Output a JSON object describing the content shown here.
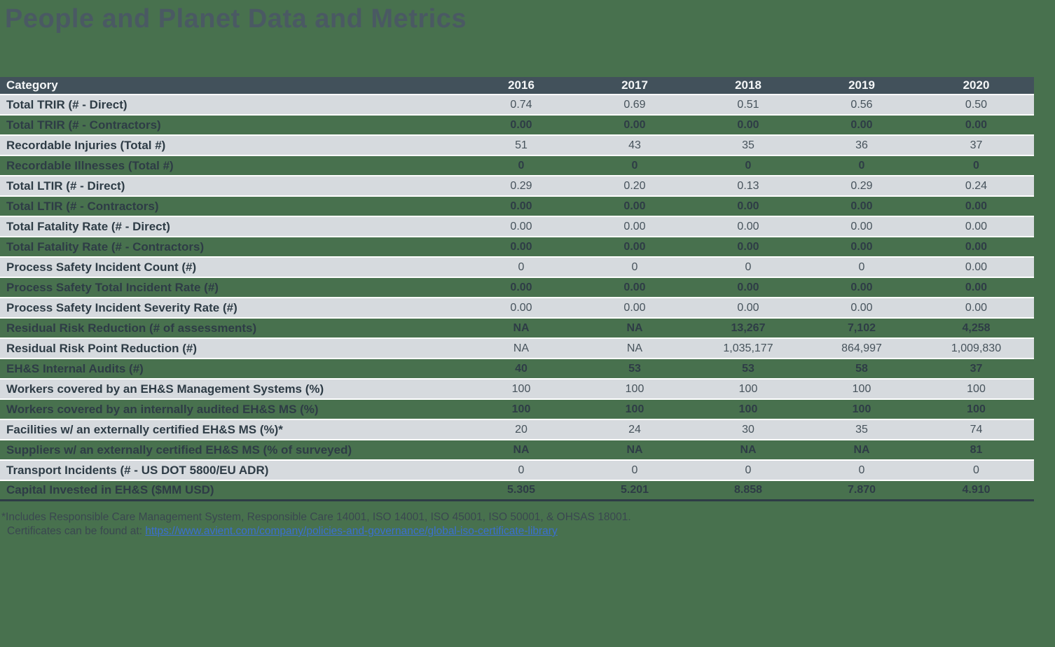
{
  "page": {
    "title": "People and Planet Data and Metrics"
  },
  "table": {
    "columns": [
      "Category",
      "2016",
      "2017",
      "2018",
      "2019",
      "2020"
    ],
    "rows": [
      {
        "category": "Total TRIR (# - Direct)",
        "values": [
          "0.74",
          "0.69",
          "0.51",
          "0.56",
          "0.50"
        ]
      },
      {
        "category": "Total TRIR (# - Contractors)",
        "values": [
          "0.00",
          "0.00",
          "0.00",
          "0.00",
          "0.00"
        ]
      },
      {
        "category": "Recordable Injuries (Total #)",
        "values": [
          "51",
          "43",
          "35",
          "36",
          "37"
        ]
      },
      {
        "category": "Recordable Illnesses (Total #)",
        "values": [
          "0",
          "0",
          "0",
          "0",
          "0"
        ]
      },
      {
        "category": "Total LTIR (# - Direct)",
        "values": [
          "0.29",
          "0.20",
          "0.13",
          "0.29",
          "0.24"
        ]
      },
      {
        "category": "Total LTIR (# - Contractors)",
        "values": [
          "0.00",
          "0.00",
          "0.00",
          "0.00",
          "0.00"
        ]
      },
      {
        "category": "Total Fatality Rate (# - Direct)",
        "values": [
          "0.00",
          "0.00",
          "0.00",
          "0.00",
          "0.00"
        ]
      },
      {
        "category": "Total Fatality Rate (# - Contractors)",
        "values": [
          "0.00",
          "0.00",
          "0.00",
          "0.00",
          "0.00"
        ]
      },
      {
        "category": "Process Safety Incident Count (#)",
        "values": [
          "0",
          "0",
          "0",
          "0",
          "0.00"
        ]
      },
      {
        "category": "Process Safety Total Incident Rate (#)",
        "values": [
          "0.00",
          "0.00",
          "0.00",
          "0.00",
          "0.00"
        ]
      },
      {
        "category": "Process Safety Incident Severity Rate (#)",
        "values": [
          "0.00",
          "0.00",
          "0.00",
          "0.00",
          "0.00"
        ]
      },
      {
        "category": "Residual Risk Reduction (# of assessments)",
        "values": [
          "NA",
          "NA",
          "13,267",
          "7,102",
          "4,258"
        ]
      },
      {
        "category": "Residual Risk Point Reduction (#)",
        "values": [
          "NA",
          "NA",
          "1,035,177",
          "864,997",
          "1,009,830"
        ]
      },
      {
        "category": "EH&S Internal Audits (#)",
        "values": [
          "40",
          "53",
          "53",
          "58",
          "37"
        ]
      },
      {
        "category": "Workers covered by an EH&S Management Systems (%)",
        "values": [
          "100",
          "100",
          "100",
          "100",
          "100"
        ]
      },
      {
        "category": "Workers covered by an internally audited EH&S MS (%)",
        "values": [
          "100",
          "100",
          "100",
          "100",
          "100"
        ]
      },
      {
        "category": "Facilities w/ an externally certified EH&S MS (%)*",
        "values": [
          "20",
          "24",
          "30",
          "35",
          "74"
        ]
      },
      {
        "category": "Suppliers w/ an externally certified EH&S MS (% of surveyed)",
        "values": [
          "NA",
          "NA",
          "NA",
          "NA",
          "81"
        ]
      },
      {
        "category": "Transport Incidents (# - US DOT 5800/EU ADR)",
        "values": [
          "0",
          "0",
          "0",
          "0",
          "0"
        ]
      },
      {
        "category": "Capital Invested in EH&S ($MM USD)",
        "values": [
          "5.305",
          "5.201",
          "8.858",
          "7.870",
          "4.910"
        ]
      }
    ]
  },
  "footnote": {
    "line1": "*Includes Responsible Care Management System, Responsible Care 14001, ISO 14001, ISO 45001, ISO 50001, & OHSAS 18001.",
    "line2_prefix": "Certificates can be found at: ",
    "link_text": "https://www.avient.com/company/policies-and-governance/global-iso-certificate-library"
  },
  "colors": {
    "background": "#48714E",
    "header_bg": "#42515B",
    "header_fg": "#F4F6F7",
    "row_light_bg": "#D6DADE",
    "category_fg": "#2E3C46",
    "value_fg": "#46525B",
    "title_fg": "#4A5963",
    "footnote_fg": "#3A4750",
    "link_fg": "#3A6FD1"
  }
}
